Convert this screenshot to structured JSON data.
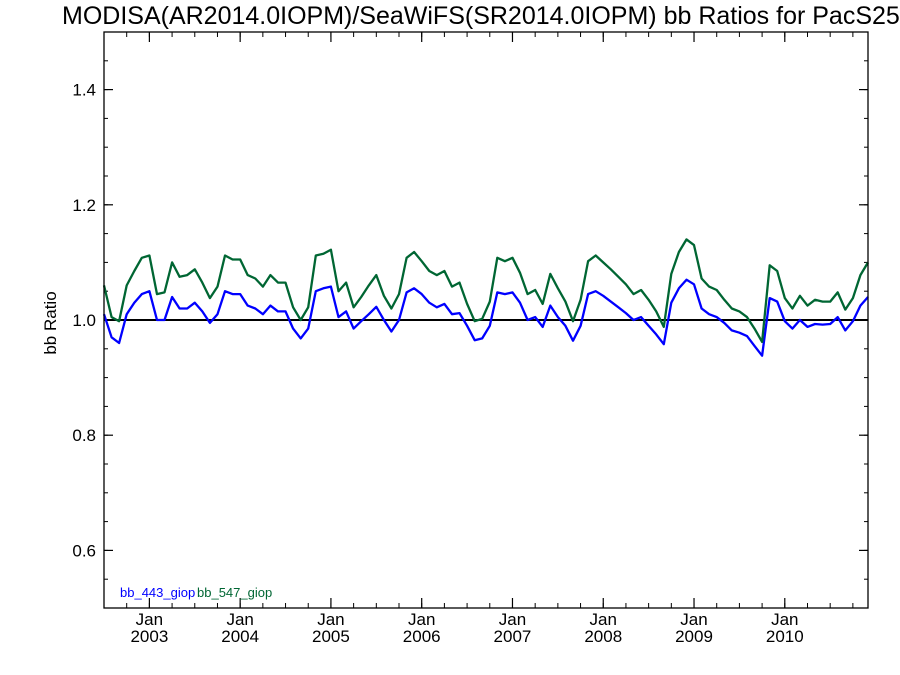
{
  "chart_data": {
    "type": "line",
    "title": "MODISA(AR2014.0IOPM)/SeaWiFS(SR2014.0IOPM)  bb Ratios for PacS25",
    "ylabel": "bb Ratio",
    "xlabel": "",
    "xlim": [
      "2002-07-01",
      "2010-12-01"
    ],
    "ylim": [
      0.5,
      1.5
    ],
    "y_ticks": [
      0.6,
      0.8,
      1.0,
      1.2,
      1.4
    ],
    "y_tick_labels": [
      "0.6",
      "0.8",
      "1.0",
      "1.2",
      "1.4"
    ],
    "x_ticks": [
      {
        "date": "2003-01-01",
        "line1": "Jan",
        "line2": "2003"
      },
      {
        "date": "2004-01-01",
        "line1": "Jan",
        "line2": "2004"
      },
      {
        "date": "2005-01-01",
        "line1": "Jan",
        "line2": "2005"
      },
      {
        "date": "2006-01-01",
        "line1": "Jan",
        "line2": "2006"
      },
      {
        "date": "2007-01-01",
        "line1": "Jan",
        "line2": "2007"
      },
      {
        "date": "2008-01-01",
        "line1": "Jan",
        "line2": "2008"
      },
      {
        "date": "2009-01-01",
        "line1": "Jan",
        "line2": "2009"
      },
      {
        "date": "2010-01-01",
        "line1": "Jan",
        "line2": "2010"
      }
    ],
    "reference_line": 1.0,
    "legend_position": "bottom-left",
    "series": [
      {
        "name": "bb_443_giop",
        "color": "#0000ff",
        "points": [
          [
            "2002-07",
            1.01
          ],
          [
            "2002-08",
            0.97
          ],
          [
            "2002-09",
            0.96
          ],
          [
            "2002-10",
            1.01
          ],
          [
            "2002-11",
            1.03
          ],
          [
            "2002-12",
            1.045
          ],
          [
            "2003-01",
            1.05
          ],
          [
            "2003-02",
            1.0
          ],
          [
            "2003-03",
            1.0
          ],
          [
            "2003-04",
            1.04
          ],
          [
            "2003-05",
            1.02
          ],
          [
            "2003-06",
            1.02
          ],
          [
            "2003-07",
            1.03
          ],
          [
            "2003-08",
            1.015
          ],
          [
            "2003-09",
            0.995
          ],
          [
            "2003-10",
            1.01
          ],
          [
            "2003-11",
            1.05
          ],
          [
            "2003-12",
            1.045
          ],
          [
            "2004-01",
            1.045
          ],
          [
            "2004-02",
            1.025
          ],
          [
            "2004-03",
            1.02
          ],
          [
            "2004-04",
            1.01
          ],
          [
            "2004-05",
            1.025
          ],
          [
            "2004-06",
            1.015
          ],
          [
            "2004-07",
            1.015
          ],
          [
            "2004-08",
            0.985
          ],
          [
            "2004-09",
            0.968
          ],
          [
            "2004-10",
            0.985
          ],
          [
            "2004-11",
            1.05
          ],
          [
            "2004-12",
            1.055
          ],
          [
            "2005-01",
            1.058
          ],
          [
            "2005-02",
            1.005
          ],
          [
            "2005-03",
            1.015
          ],
          [
            "2005-04",
            0.985
          ],
          [
            "2005-05",
            0.998
          ],
          [
            "2005-06",
            1.01
          ],
          [
            "2005-07",
            1.023
          ],
          [
            "2005-08",
            1.0
          ],
          [
            "2005-09",
            0.98
          ],
          [
            "2005-10",
            1.0
          ],
          [
            "2005-11",
            1.048
          ],
          [
            "2005-12",
            1.055
          ],
          [
            "2006-01",
            1.045
          ],
          [
            "2006-02",
            1.03
          ],
          [
            "2006-03",
            1.022
          ],
          [
            "2006-04",
            1.028
          ],
          [
            "2006-05",
            1.01
          ],
          [
            "2006-06",
            1.012
          ],
          [
            "2006-07",
            0.99
          ],
          [
            "2006-08",
            0.965
          ],
          [
            "2006-09",
            0.968
          ],
          [
            "2006-10",
            0.99
          ],
          [
            "2006-11",
            1.048
          ],
          [
            "2006-12",
            1.045
          ],
          [
            "2007-01",
            1.048
          ],
          [
            "2007-02",
            1.03
          ],
          [
            "2007-03",
            1.0
          ],
          [
            "2007-04",
            1.005
          ],
          [
            "2007-05",
            0.988
          ],
          [
            "2007-06",
            1.025
          ],
          [
            "2007-07",
            1.005
          ],
          [
            "2007-08",
            0.99
          ],
          [
            "2007-09",
            0.964
          ],
          [
            "2007-10",
            0.99
          ],
          [
            "2007-11",
            1.045
          ],
          [
            "2007-12",
            1.05
          ],
          [
            "2008-01",
            1.042
          ],
          [
            "2008-02",
            1.032
          ],
          [
            "2008-03",
            1.022
          ],
          [
            "2008-04",
            1.012
          ],
          [
            "2008-05",
            1.0
          ],
          [
            "2008-06",
            1.005
          ],
          [
            "2008-07",
            0.99
          ],
          [
            "2008-08",
            0.975
          ],
          [
            "2008-09",
            0.958
          ],
          [
            "2008-10",
            1.03
          ],
          [
            "2008-11",
            1.055
          ],
          [
            "2008-12",
            1.07
          ],
          [
            "2009-01",
            1.062
          ],
          [
            "2009-02",
            1.02
          ],
          [
            "2009-03",
            1.01
          ],
          [
            "2009-04",
            1.005
          ],
          [
            "2009-05",
            0.995
          ],
          [
            "2009-06",
            0.982
          ],
          [
            "2009-07",
            0.978
          ],
          [
            "2009-08",
            0.972
          ],
          [
            "2009-09",
            0.955
          ],
          [
            "2009-10",
            0.938
          ],
          [
            "2009-11",
            1.038
          ],
          [
            "2009-12",
            1.032
          ],
          [
            "2010-01",
            0.998
          ],
          [
            "2010-02",
            0.985
          ],
          [
            "2010-03",
            1.0
          ],
          [
            "2010-04",
            0.988
          ],
          [
            "2010-05",
            0.993
          ],
          [
            "2010-06",
            0.992
          ],
          [
            "2010-07",
            0.993
          ],
          [
            "2010-08",
            1.005
          ],
          [
            "2010-09",
            0.982
          ],
          [
            "2010-10",
            0.998
          ],
          [
            "2010-11",
            1.025
          ],
          [
            "2010-12",
            1.04
          ]
        ]
      },
      {
        "name": "bb_547_giop",
        "color": "#006633",
        "points": [
          [
            "2002-07",
            1.06
          ],
          [
            "2002-08",
            1.005
          ],
          [
            "2002-09",
            0.998
          ],
          [
            "2002-10",
            1.06
          ],
          [
            "2002-11",
            1.085
          ],
          [
            "2002-12",
            1.108
          ],
          [
            "2003-01",
            1.112
          ],
          [
            "2003-02",
            1.045
          ],
          [
            "2003-03",
            1.048
          ],
          [
            "2003-04",
            1.1
          ],
          [
            "2003-05",
            1.075
          ],
          [
            "2003-06",
            1.078
          ],
          [
            "2003-07",
            1.088
          ],
          [
            "2003-08",
            1.065
          ],
          [
            "2003-09",
            1.038
          ],
          [
            "2003-10",
            1.058
          ],
          [
            "2003-11",
            1.112
          ],
          [
            "2003-12",
            1.105
          ],
          [
            "2004-01",
            1.105
          ],
          [
            "2004-02",
            1.078
          ],
          [
            "2004-03",
            1.072
          ],
          [
            "2004-04",
            1.058
          ],
          [
            "2004-05",
            1.078
          ],
          [
            "2004-06",
            1.065
          ],
          [
            "2004-07",
            1.065
          ],
          [
            "2004-08",
            1.022
          ],
          [
            "2004-09",
            1.0
          ],
          [
            "2004-10",
            1.022
          ],
          [
            "2004-11",
            1.112
          ],
          [
            "2004-12",
            1.115
          ],
          [
            "2005-01",
            1.122
          ],
          [
            "2005-02",
            1.05
          ],
          [
            "2005-03",
            1.065
          ],
          [
            "2005-04",
            1.022
          ],
          [
            "2005-05",
            1.04
          ],
          [
            "2005-06",
            1.06
          ],
          [
            "2005-07",
            1.078
          ],
          [
            "2005-08",
            1.042
          ],
          [
            "2005-09",
            1.02
          ],
          [
            "2005-10",
            1.045
          ],
          [
            "2005-11",
            1.108
          ],
          [
            "2005-12",
            1.118
          ],
          [
            "2006-01",
            1.102
          ],
          [
            "2006-02",
            1.085
          ],
          [
            "2006-03",
            1.078
          ],
          [
            "2006-04",
            1.085
          ],
          [
            "2006-05",
            1.058
          ],
          [
            "2006-06",
            1.065
          ],
          [
            "2006-07",
            1.028
          ],
          [
            "2006-08",
            0.998
          ],
          [
            "2006-09",
            1.002
          ],
          [
            "2006-10",
            1.032
          ],
          [
            "2006-11",
            1.108
          ],
          [
            "2006-12",
            1.102
          ],
          [
            "2007-01",
            1.108
          ],
          [
            "2007-02",
            1.082
          ],
          [
            "2007-03",
            1.045
          ],
          [
            "2007-04",
            1.052
          ],
          [
            "2007-05",
            1.028
          ],
          [
            "2007-06",
            1.08
          ],
          [
            "2007-07",
            1.055
          ],
          [
            "2007-08",
            1.032
          ],
          [
            "2007-09",
            0.998
          ],
          [
            "2007-10",
            1.035
          ],
          [
            "2007-11",
            1.102
          ],
          [
            "2007-12",
            1.112
          ],
          [
            "2008-01",
            1.1
          ],
          [
            "2008-02",
            1.088
          ],
          [
            "2008-03",
            1.075
          ],
          [
            "2008-04",
            1.062
          ],
          [
            "2008-05",
            1.045
          ],
          [
            "2008-06",
            1.052
          ],
          [
            "2008-07",
            1.035
          ],
          [
            "2008-08",
            1.015
          ],
          [
            "2008-09",
            0.988
          ],
          [
            "2008-10",
            1.08
          ],
          [
            "2008-11",
            1.118
          ],
          [
            "2008-12",
            1.14
          ],
          [
            "2009-01",
            1.13
          ],
          [
            "2009-02",
            1.072
          ],
          [
            "2009-03",
            1.058
          ],
          [
            "2009-04",
            1.052
          ],
          [
            "2009-05",
            1.035
          ],
          [
            "2009-06",
            1.02
          ],
          [
            "2009-07",
            1.015
          ],
          [
            "2009-08",
            1.005
          ],
          [
            "2009-09",
            0.985
          ],
          [
            "2009-10",
            0.962
          ],
          [
            "2009-11",
            1.095
          ],
          [
            "2009-12",
            1.085
          ],
          [
            "2010-01",
            1.038
          ],
          [
            "2010-02",
            1.02
          ],
          [
            "2010-03",
            1.042
          ],
          [
            "2010-04",
            1.025
          ],
          [
            "2010-05",
            1.035
          ],
          [
            "2010-06",
            1.032
          ],
          [
            "2010-07",
            1.032
          ],
          [
            "2010-08",
            1.048
          ],
          [
            "2010-09",
            1.018
          ],
          [
            "2010-10",
            1.038
          ],
          [
            "2010-11",
            1.078
          ],
          [
            "2010-12",
            1.1
          ]
        ]
      }
    ]
  }
}
